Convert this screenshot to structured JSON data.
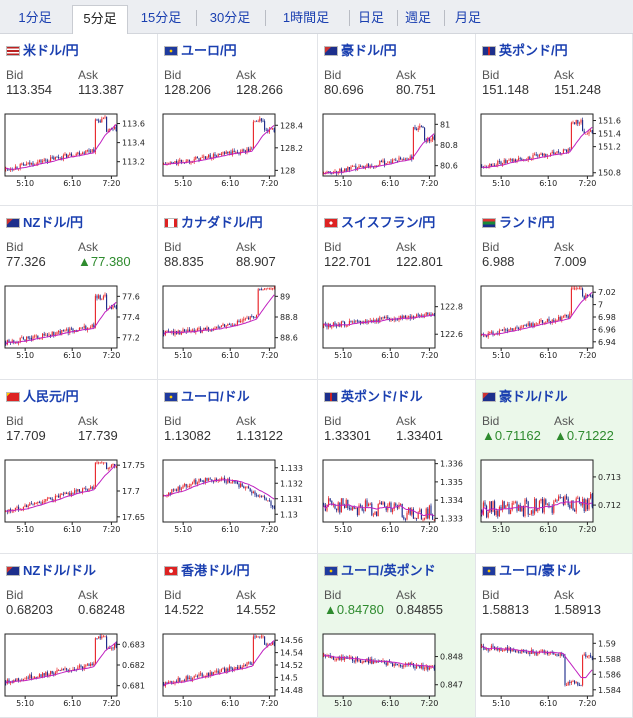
{
  "tabs": [
    {
      "label": "1分足",
      "active": false
    },
    {
      "label": "5分足",
      "active": true
    },
    {
      "label": "15分足",
      "active": false
    },
    {
      "label": "30分足",
      "active": false
    },
    {
      "label": "1時間足",
      "active": false
    },
    {
      "label": "日足",
      "active": false
    },
    {
      "label": "週足",
      "active": false
    },
    {
      "label": "月足",
      "active": false
    }
  ],
  "labels": {
    "bid": "Bid",
    "ask": "Ask"
  },
  "x_ticks": [
    "5:10",
    "6:10",
    "7:20"
  ],
  "colors": {
    "up_candle": "#e8282c",
    "down_candle": "#1c2a8a",
    "moving_average": "#c020c0",
    "highlight_bg": "#ebf8ea",
    "link": "#1a3fb0"
  },
  "pairs": [
    {
      "name": "米ドル/円",
      "flag": "us-flag-icon",
      "bid": "113.354",
      "ask": "113.387",
      "bid_dir": "",
      "ask_dir": "",
      "highlight": false,
      "y_ticks": [
        "113.6",
        "113.4",
        "113.2"
      ],
      "ylim": [
        113.05,
        113.7
      ],
      "start": 113.12,
      "end": 113.38,
      "pattern": "jump"
    },
    {
      "name": "ユーロ/円",
      "flag": "eu-flag-icon",
      "bid": "128.206",
      "ask": "128.266",
      "bid_dir": "",
      "ask_dir": "",
      "highlight": false,
      "y_ticks": [
        "128.4",
        "128.2",
        "128"
      ],
      "ylim": [
        127.95,
        128.5
      ],
      "start": 128.05,
      "end": 128.22,
      "pattern": "jump"
    },
    {
      "name": "豪ドル/円",
      "flag": "au-flag-icon",
      "bid": "80.696",
      "ask": "80.751",
      "bid_dir": "",
      "ask_dir": "",
      "highlight": false,
      "y_ticks": [
        "81",
        "80.8",
        "80.6"
      ],
      "ylim": [
        80.5,
        81.1
      ],
      "start": 80.52,
      "end": 80.72,
      "pattern": "jump"
    },
    {
      "name": "英ポンド/円",
      "flag": "gb-flag-icon",
      "bid": "151.148",
      "ask": "151.248",
      "bid_dir": "",
      "ask_dir": "",
      "highlight": false,
      "y_ticks": [
        "151.6",
        "151.4",
        "151.2",
        "150.8"
      ],
      "ylim": [
        150.75,
        151.7
      ],
      "start": 150.9,
      "end": 151.2,
      "pattern": "jump"
    },
    {
      "name": "NZドル/円",
      "flag": "nz-flag-icon",
      "bid": "77.326",
      "ask": "77.380",
      "bid_dir": "",
      "ask_dir": "up",
      "highlight": false,
      "y_ticks": [
        "77.6",
        "77.4",
        "77.2"
      ],
      "ylim": [
        77.1,
        77.7
      ],
      "start": 77.15,
      "end": 77.35,
      "pattern": "jump"
    },
    {
      "name": "カナダドル/円",
      "flag": "ca-flag-icon",
      "bid": "88.835",
      "ask": "88.907",
      "bid_dir": "",
      "ask_dir": "",
      "highlight": false,
      "y_ticks": [
        "89",
        "88.8",
        "88.6"
      ],
      "ylim": [
        88.5,
        89.1
      ],
      "start": 88.65,
      "end": 88.87,
      "pattern": "dip"
    },
    {
      "name": "スイスフラン/円",
      "flag": "ch-flag-icon",
      "bid": "122.701",
      "ask": "122.801",
      "bid_dir": "",
      "ask_dir": "",
      "highlight": false,
      "y_ticks": [
        "122.8",
        "122.6"
      ],
      "ylim": [
        122.5,
        122.95
      ],
      "start": 122.66,
      "end": 122.75,
      "pattern": "flat"
    },
    {
      "name": "ランド/円",
      "flag": "za-flag-icon",
      "bid": "6.988",
      "ask": "7.009",
      "bid_dir": "",
      "ask_dir": "",
      "highlight": false,
      "y_ticks": [
        "7.02",
        "7",
        "6.98",
        "6.96",
        "6.94"
      ],
      "ylim": [
        6.93,
        7.03
      ],
      "start": 6.95,
      "end": 6.99,
      "pattern": "jump"
    },
    {
      "name": "人民元/円",
      "flag": "cn-flag-icon",
      "bid": "17.709",
      "ask": "17.739",
      "bid_dir": "",
      "ask_dir": "",
      "highlight": false,
      "y_ticks": [
        "17.75",
        "17.7",
        "17.65"
      ],
      "ylim": [
        17.64,
        17.76
      ],
      "start": 17.66,
      "end": 17.72,
      "pattern": "jump"
    },
    {
      "name": "ユーロ/ドル",
      "flag": "eu-us-flag-icon",
      "bid": "1.13082",
      "ask": "1.13122",
      "bid_dir": "",
      "ask_dir": "",
      "highlight": false,
      "y_ticks": [
        "1.133",
        "1.132",
        "1.131",
        "1.13"
      ],
      "ylim": [
        1.1295,
        1.1335
      ],
      "start": 1.1312,
      "end": 1.1305,
      "pattern": "hump"
    },
    {
      "name": "英ポンド/ドル",
      "flag": "gb-us-flag-icon",
      "bid": "1.33301",
      "ask": "1.33401",
      "bid_dir": "",
      "ask_dir": "",
      "highlight": false,
      "y_ticks": [
        "1.336",
        "1.335",
        "1.334",
        "1.333"
      ],
      "ylim": [
        1.3328,
        1.3362
      ],
      "start": 1.3338,
      "end": 1.3332,
      "pattern": "noisy"
    },
    {
      "name": "豪ドル/ドル",
      "flag": "au-us-flag-icon",
      "bid": "0.71162",
      "ask": "0.71222",
      "bid_dir": "up",
      "ask_dir": "up",
      "highlight": true,
      "y_ticks": [
        "0.713",
        "0.712"
      ],
      "ylim": [
        0.7114,
        0.7136
      ],
      "start": 0.7118,
      "end": 0.7121,
      "pattern": "noisy"
    },
    {
      "name": "NZドル/ドル",
      "flag": "nz-us-flag-icon",
      "bid": "0.68203",
      "ask": "0.68248",
      "bid_dir": "",
      "ask_dir": "",
      "highlight": false,
      "y_ticks": [
        "0.683",
        "0.682",
        "0.681"
      ],
      "ylim": [
        0.6805,
        0.6835
      ],
      "start": 0.6812,
      "end": 0.6822,
      "pattern": "jump"
    },
    {
      "name": "香港ドル/円",
      "flag": "hk-flag-icon",
      "bid": "14.522",
      "ask": "14.552",
      "bid_dir": "",
      "ask_dir": "",
      "highlight": false,
      "y_ticks": [
        "14.56",
        "14.54",
        "14.52",
        "14.5",
        "14.48"
      ],
      "ylim": [
        14.47,
        14.57
      ],
      "start": 14.49,
      "end": 14.53,
      "pattern": "jump"
    },
    {
      "name": "ユーロ/英ポンド",
      "flag": "eu-gb-flag-icon",
      "bid": "0.84780",
      "ask": "0.84855",
      "bid_dir": "up",
      "ask_dir": "",
      "highlight": true,
      "y_ticks": [
        "0.848",
        "0.847"
      ],
      "ylim": [
        0.8466,
        0.8488
      ],
      "start": 0.848,
      "end": 0.8476,
      "pattern": "flat"
    },
    {
      "name": "ユーロ/豪ドル",
      "flag": "eu-au-flag-icon",
      "bid": "1.58813",
      "ask": "1.58913",
      "bid_dir": "",
      "ask_dir": "",
      "highlight": false,
      "y_ticks": [
        "1.59",
        "1.588",
        "1.586",
        "1.584"
      ],
      "ylim": [
        1.5832,
        1.5912
      ],
      "start": 1.5895,
      "end": 1.5882,
      "pattern": "drop"
    }
  ]
}
